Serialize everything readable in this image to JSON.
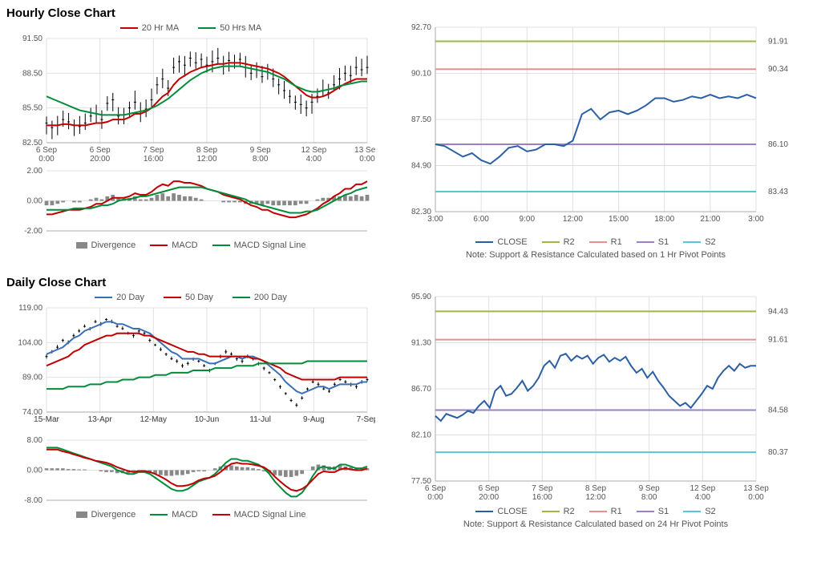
{
  "hourly": {
    "title": "Hourly Close Chart",
    "price_chart": {
      "type": "candlestick+line",
      "ylim": [
        82.5,
        91.5
      ],
      "yticks": [
        82.5,
        85.5,
        88.5,
        91.5
      ],
      "xticks": [
        "6 Sep 0:00",
        "6 Sep 20:00",
        "7 Sep 16:00",
        "8 Sep 12:00",
        "9 Sep 8:00",
        "12 Sep 4:00",
        "13 Sep 0:00"
      ],
      "legend": [
        {
          "label": "20 Hr MA",
          "color": "#c00000"
        },
        {
          "label": "50 Hrs MA",
          "color": "#008c3a"
        }
      ],
      "price": [
        84.2,
        83.8,
        84.0,
        84.5,
        84.3,
        84.0,
        83.9,
        84.2,
        84.8,
        85.0,
        84.5,
        85.9,
        86.2,
        84.8,
        84.9,
        85.5,
        86.0,
        85.0,
        85.4,
        86.2,
        87.5,
        88.0,
        87.2,
        89.0,
        89.5,
        89.2,
        89.8,
        89.4,
        89.7,
        89.2,
        89.5,
        89.8,
        89.3,
        89.6,
        89.4,
        89.7,
        89.0,
        88.5,
        88.8,
        88.2,
        88.6,
        88.0,
        87.5,
        87.0,
        86.5,
        86.0,
        85.8,
        85.5,
        86.0,
        86.5,
        87.0,
        86.8,
        87.5,
        88.0,
        88.5,
        88.3,
        89.0,
        88.8,
        89.0
      ],
      "ma20": [
        84.0,
        84.0,
        84.0,
        84.1,
        84.1,
        84.0,
        84.0,
        84.0,
        84.1,
        84.2,
        84.2,
        84.3,
        84.5,
        84.5,
        84.5,
        84.7,
        85.0,
        85.0,
        85.2,
        85.5,
        86.0,
        86.5,
        86.8,
        87.5,
        88.0,
        88.3,
        88.6,
        88.8,
        89.0,
        89.1,
        89.2,
        89.3,
        89.3,
        89.4,
        89.4,
        89.4,
        89.3,
        89.2,
        89.1,
        89.0,
        88.9,
        88.7,
        88.5,
        88.2,
        87.8,
        87.4,
        87.0,
        86.6,
        86.4,
        86.4,
        86.5,
        86.7,
        87.0,
        87.3,
        87.6,
        87.8,
        88.0,
        88.0,
        88.0
      ],
      "ma50": [
        86.5,
        86.3,
        86.1,
        85.9,
        85.7,
        85.5,
        85.3,
        85.2,
        85.1,
        85.0,
        84.9,
        84.9,
        84.9,
        84.9,
        84.9,
        85.0,
        85.1,
        85.2,
        85.3,
        85.5,
        85.7,
        86.0,
        86.3,
        86.7,
        87.1,
        87.5,
        87.9,
        88.2,
        88.5,
        88.7,
        88.9,
        89.0,
        89.1,
        89.1,
        89.1,
        89.1,
        89.0,
        88.9,
        88.8,
        88.7,
        88.6,
        88.4,
        88.2,
        88.0,
        87.7,
        87.4,
        87.2,
        87.0,
        86.9,
        86.9,
        87.0,
        87.1,
        87.2,
        87.4,
        87.5,
        87.6,
        87.7,
        87.8,
        87.8
      ],
      "colors": {
        "price": "#000000",
        "ma20": "#c00000",
        "ma50": "#008c3a",
        "grid": "#e0e0e0",
        "bg": "#ffffff"
      }
    },
    "macd_chart": {
      "type": "bar+line",
      "ylim": [
        -2.0,
        2.0
      ],
      "yticks": [
        -2.0,
        0.0,
        2.0
      ],
      "legend": [
        {
          "label": "Divergence",
          "color": "#888888",
          "type": "bar"
        },
        {
          "label": "MACD",
          "color": "#c00000",
          "type": "line"
        },
        {
          "label": "MACD Signal Line",
          "color": "#008c3a",
          "type": "line"
        }
      ],
      "divergence": [
        -0.3,
        -0.3,
        -0.2,
        -0.1,
        0.0,
        -0.1,
        -0.1,
        0.0,
        0.1,
        0.2,
        0.1,
        0.3,
        0.4,
        0.2,
        0.1,
        0.2,
        0.3,
        0.1,
        0.1,
        0.2,
        0.4,
        0.5,
        0.3,
        0.5,
        0.4,
        0.3,
        0.3,
        0.2,
        0.1,
        0.0,
        0.0,
        0.0,
        -0.1,
        -0.1,
        -0.1,
        -0.1,
        -0.2,
        -0.2,
        -0.2,
        -0.3,
        -0.2,
        -0.3,
        -0.3,
        -0.3,
        -0.3,
        -0.3,
        -0.2,
        -0.2,
        0.0,
        0.1,
        0.2,
        0.2,
        0.3,
        0.3,
        0.4,
        0.3,
        0.4,
        0.3,
        0.4
      ],
      "macd": [
        -0.9,
        -0.9,
        -0.8,
        -0.7,
        -0.6,
        -0.6,
        -0.6,
        -0.5,
        -0.4,
        -0.2,
        -0.2,
        0.0,
        0.2,
        0.2,
        0.2,
        0.3,
        0.5,
        0.4,
        0.4,
        0.6,
        0.9,
        1.1,
        1.0,
        1.3,
        1.3,
        1.2,
        1.2,
        1.1,
        1.0,
        0.8,
        0.7,
        0.6,
        0.4,
        0.3,
        0.2,
        0.1,
        -0.1,
        -0.3,
        -0.4,
        -0.6,
        -0.6,
        -0.8,
        -0.9,
        -1.0,
        -1.1,
        -1.1,
        -1.0,
        -0.9,
        -0.7,
        -0.5,
        -0.2,
        0.0,
        0.3,
        0.5,
        0.8,
        0.8,
        1.1,
        1.1,
        1.3
      ],
      "signal": [
        -0.6,
        -0.6,
        -0.6,
        -0.6,
        -0.6,
        -0.5,
        -0.5,
        -0.5,
        -0.5,
        -0.4,
        -0.3,
        -0.3,
        -0.2,
        0.0,
        0.1,
        0.1,
        0.2,
        0.3,
        0.3,
        0.4,
        0.5,
        0.6,
        0.7,
        0.8,
        0.9,
        0.9,
        0.9,
        0.9,
        0.9,
        0.8,
        0.7,
        0.6,
        0.5,
        0.4,
        0.3,
        0.2,
        0.1,
        -0.1,
        -0.2,
        -0.3,
        -0.4,
        -0.5,
        -0.6,
        -0.7,
        -0.8,
        -0.8,
        -0.8,
        -0.7,
        -0.7,
        -0.6,
        -0.4,
        -0.2,
        0.0,
        0.2,
        0.4,
        0.5,
        0.7,
        0.8,
        0.9
      ],
      "colors": {
        "bar": "#888888",
        "macd": "#c00000",
        "signal": "#008c3a"
      }
    },
    "sr_chart": {
      "type": "line+horizontals",
      "ylim": [
        82.3,
        92.7
      ],
      "yticks": [
        82.3,
        84.9,
        87.5,
        90.1,
        92.7
      ],
      "xticks": [
        "3:00",
        "6:00",
        "9:00",
        "12:00",
        "15:00",
        "18:00",
        "21:00",
        "3:00"
      ],
      "close": [
        86.1,
        86.0,
        85.7,
        85.4,
        85.6,
        85.2,
        85.0,
        85.4,
        85.9,
        86.0,
        85.7,
        85.8,
        86.1,
        86.1,
        86.0,
        86.3,
        87.8,
        88.1,
        87.5,
        87.9,
        88.0,
        87.8,
        88.0,
        88.3,
        88.7,
        88.7,
        88.5,
        88.6,
        88.8,
        88.7,
        88.9,
        88.7,
        88.8,
        88.7,
        88.9,
        88.7
      ],
      "levels": [
        {
          "name": "R2",
          "value": 91.91,
          "color": "#9cb84a"
        },
        {
          "name": "R1",
          "value": 90.34,
          "color": "#e59090"
        },
        {
          "name": "S1",
          "value": 86.1,
          "color": "#9a80c4"
        },
        {
          "name": "S2",
          "value": 83.43,
          "color": "#5cc3d8"
        }
      ],
      "legend": [
        {
          "label": "CLOSE",
          "color": "#2b5fa3"
        },
        {
          "label": "R2",
          "color": "#9cb84a"
        },
        {
          "label": "R1",
          "color": "#e59090"
        },
        {
          "label": "S1",
          "color": "#9a80c4"
        },
        {
          "label": "S2",
          "color": "#5cc3d8"
        }
      ],
      "note": "Note: Support & Resistance Calculated based on 1 Hr Pivot Points",
      "colors": {
        "close": "#2b5fa3"
      }
    }
  },
  "daily": {
    "title": "Daily Close Chart",
    "price_chart": {
      "type": "candlestick+line",
      "ylim": [
        74.0,
        119.0
      ],
      "yticks": [
        74.0,
        89.0,
        104.0,
        119.0
      ],
      "xticks": [
        "15-Mar",
        "13-Apr",
        "12-May",
        "10-Jun",
        "11-Jul",
        "9-Aug",
        "7-Sep"
      ],
      "legend": [
        {
          "label": "20 Day",
          "color": "#3a6fb7"
        },
        {
          "label": "50 Day",
          "color": "#c00000"
        },
        {
          "label": "200 Day",
          "color": "#008c3a"
        }
      ],
      "price": [
        98,
        100,
        102,
        105,
        104,
        107,
        109,
        111,
        110,
        113,
        112,
        114,
        113,
        111,
        110,
        108,
        107,
        109,
        108,
        105,
        103,
        101,
        99,
        97,
        96,
        94,
        95,
        97,
        96,
        94,
        92,
        95,
        98,
        100,
        99,
        97,
        96,
        98,
        97,
        95,
        93,
        91,
        88,
        85,
        82,
        79,
        77,
        80,
        84,
        87,
        86,
        84,
        83,
        86,
        88,
        87,
        86,
        85,
        87,
        88
      ],
      "ma20": [
        99,
        100,
        101,
        102,
        104,
        106,
        107,
        109,
        110,
        111,
        112,
        113,
        113,
        112,
        112,
        111,
        110,
        110,
        109,
        108,
        106,
        104,
        102,
        100,
        99,
        97,
        97,
        97,
        97,
        96,
        95,
        95,
        96,
        97,
        98,
        98,
        97,
        98,
        98,
        97,
        96,
        94,
        92,
        90,
        87,
        85,
        83,
        82,
        83,
        84,
        85,
        85,
        84,
        85,
        86,
        86,
        86,
        86,
        87,
        87
      ],
      "ma50": [
        94,
        95,
        96,
        97,
        98,
        100,
        101,
        103,
        104,
        105,
        106,
        107,
        107,
        108,
        108,
        108,
        108,
        108,
        107,
        107,
        106,
        105,
        104,
        103,
        102,
        101,
        100,
        100,
        99,
        99,
        98,
        98,
        98,
        98,
        98,
        98,
        98,
        98,
        97,
        97,
        96,
        95,
        94,
        93,
        91,
        90,
        89,
        88,
        88,
        88,
        88,
        88,
        88,
        88,
        89,
        89,
        89,
        89,
        89,
        89
      ],
      "ma200": [
        84,
        84,
        84,
        84,
        85,
        85,
        85,
        85,
        86,
        86,
        86,
        87,
        87,
        87,
        88,
        88,
        88,
        89,
        89,
        89,
        90,
        90,
        90,
        91,
        91,
        91,
        91,
        92,
        92,
        92,
        92,
        93,
        93,
        93,
        93,
        94,
        94,
        94,
        94,
        95,
        95,
        95,
        95,
        95,
        95,
        95,
        95,
        95,
        96,
        96,
        96,
        96,
        96,
        96,
        96,
        96,
        96,
        96,
        96,
        96
      ],
      "colors": {
        "price": "#000000",
        "ma20": "#3a6fb7",
        "ma50": "#c00000",
        "ma200": "#008c3a"
      }
    },
    "macd_chart": {
      "type": "bar+line",
      "ylim": [
        -8.0,
        8.0
      ],
      "yticks": [
        -8.0,
        0.0,
        8.0
      ],
      "legend": [
        {
          "label": "Divergence",
          "color": "#888888",
          "type": "bar"
        },
        {
          "label": "MACD",
          "color": "#008c3a",
          "type": "line"
        },
        {
          "label": "MACD Signal Line",
          "color": "#c00000",
          "type": "line"
        }
      ],
      "divergence": [
        0.5,
        0.5,
        0.5,
        0.5,
        0.3,
        0.3,
        0.2,
        0.2,
        0.0,
        0.0,
        -0.3,
        -0.5,
        -0.5,
        -0.8,
        -0.8,
        -0.8,
        -0.5,
        -0.3,
        -0.3,
        -0.5,
        -1.0,
        -1.3,
        -1.5,
        -1.5,
        -1.3,
        -1.3,
        -1.0,
        -0.5,
        -0.3,
        -0.3,
        0.0,
        0.5,
        1.0,
        1.3,
        1.3,
        1.0,
        0.8,
        0.8,
        0.5,
        0.3,
        -0.3,
        -0.8,
        -1.3,
        -1.5,
        -1.8,
        -1.8,
        -1.5,
        -1.0,
        0.0,
        1.0,
        1.5,
        1.3,
        1.0,
        1.0,
        1.3,
        1.0,
        0.8,
        0.5,
        0.5,
        0.5
      ],
      "macd": [
        6.0,
        6.0,
        6.0,
        5.5,
        5.0,
        4.5,
        4.0,
        3.5,
        3.0,
        2.5,
        2.0,
        1.5,
        1.0,
        0.0,
        -0.5,
        -1.0,
        -1.0,
        -0.5,
        -0.5,
        -1.0,
        -2.0,
        -3.0,
        -4.0,
        -5.0,
        -5.5,
        -5.5,
        -5.0,
        -4.0,
        -3.0,
        -2.5,
        -2.0,
        -1.0,
        0.5,
        2.0,
        3.0,
        3.0,
        2.5,
        2.5,
        2.0,
        1.5,
        0.5,
        -1.0,
        -3.0,
        -4.5,
        -6.0,
        -7.0,
        -7.0,
        -6.0,
        -4.0,
        -1.5,
        0.5,
        1.0,
        0.5,
        0.5,
        1.5,
        1.5,
        1.0,
        0.5,
        0.5,
        1.0
      ],
      "signal": [
        5.5,
        5.5,
        5.5,
        5.0,
        4.7,
        4.2,
        3.8,
        3.3,
        3.0,
        2.5,
        2.3,
        2.0,
        1.5,
        0.8,
        0.3,
        -0.2,
        -0.5,
        -0.2,
        -0.2,
        -0.5,
        -1.0,
        -1.7,
        -2.5,
        -3.5,
        -4.2,
        -4.2,
        -4.0,
        -3.5,
        -2.7,
        -2.2,
        -2.0,
        -1.5,
        -0.5,
        0.7,
        1.7,
        2.0,
        1.7,
        1.7,
        1.5,
        1.2,
        0.8,
        -0.2,
        -1.7,
        -3.0,
        -4.2,
        -5.2,
        -5.5,
        -5.0,
        -4.0,
        -2.5,
        -1.0,
        -0.3,
        -0.5,
        -0.5,
        0.2,
        0.5,
        0.2,
        0.0,
        0.0,
        0.5
      ],
      "colors": {
        "bar": "#888888",
        "macd": "#008c3a",
        "signal": "#c00000"
      }
    },
    "sr_chart": {
      "type": "line+horizontals",
      "ylim": [
        77.5,
        95.9
      ],
      "yticks": [
        77.5,
        82.1,
        86.7,
        91.3,
        95.9
      ],
      "xticks": [
        "6 Sep 0:00",
        "6 Sep 20:00",
        "7 Sep 16:00",
        "8 Sep 12:00",
        "9 Sep 8:00",
        "12 Sep 4:00",
        "13 Sep 0:00"
      ],
      "close": [
        84.0,
        83.5,
        84.2,
        84.0,
        83.8,
        84.1,
        84.5,
        84.3,
        85.0,
        85.5,
        84.8,
        86.5,
        87.0,
        86.0,
        86.2,
        86.8,
        87.5,
        86.5,
        87.0,
        87.8,
        89.0,
        89.5,
        88.8,
        90.0,
        90.2,
        89.5,
        90.0,
        89.7,
        90.0,
        89.2,
        89.8,
        90.1,
        89.4,
        89.8,
        89.5,
        89.9,
        89.0,
        88.3,
        88.7,
        87.8,
        88.4,
        87.5,
        86.8,
        86.0,
        85.5,
        85.0,
        85.3,
        84.8,
        85.5,
        86.2,
        87.0,
        86.7,
        87.8,
        88.5,
        89.0,
        88.5,
        89.2,
        88.8,
        89.0,
        89.0
      ],
      "levels": [
        {
          "name": "R2",
          "value": 94.43,
          "color": "#9cb84a"
        },
        {
          "name": "R1",
          "value": 91.61,
          "color": "#e59090"
        },
        {
          "name": "S1",
          "value": 84.58,
          "color": "#9a80c4"
        },
        {
          "name": "S2",
          "value": 80.37,
          "color": "#5cc3d8"
        }
      ],
      "legend": [
        {
          "label": "CLOSE",
          "color": "#2b5fa3"
        },
        {
          "label": "R2",
          "color": "#9cb84a"
        },
        {
          "label": "R1",
          "color": "#e59090"
        },
        {
          "label": "S1",
          "color": "#9a80c4"
        },
        {
          "label": "S2",
          "color": "#5cc3d8"
        }
      ],
      "note": "Note:  Support & Resistance Calculated based on 24 Hr Pivot Points",
      "colors": {
        "close": "#2b5fa3"
      }
    }
  }
}
